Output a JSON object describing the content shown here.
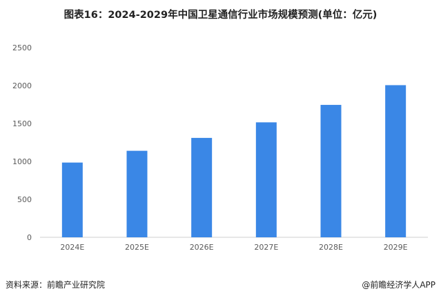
{
  "title": "图表16：2024-2029年中国卫星通信行业市场规模预测(单位：亿元)",
  "chart_data": {
    "type": "bar",
    "categories": [
      "2024E",
      "2025E",
      "2026E",
      "2027E",
      "2028E",
      "2029E"
    ],
    "values": [
      985,
      1140,
      1310,
      1515,
      1745,
      2005
    ],
    "ylim": [
      0,
      2500
    ],
    "yticks": [
      0,
      500,
      1000,
      1500,
      2000,
      2500
    ],
    "grid": false,
    "bar_color": "#3a87e6"
  },
  "footer": {
    "source": "资料来源：前瞻产业研究院",
    "brand": "@前瞻经济学人APP"
  }
}
